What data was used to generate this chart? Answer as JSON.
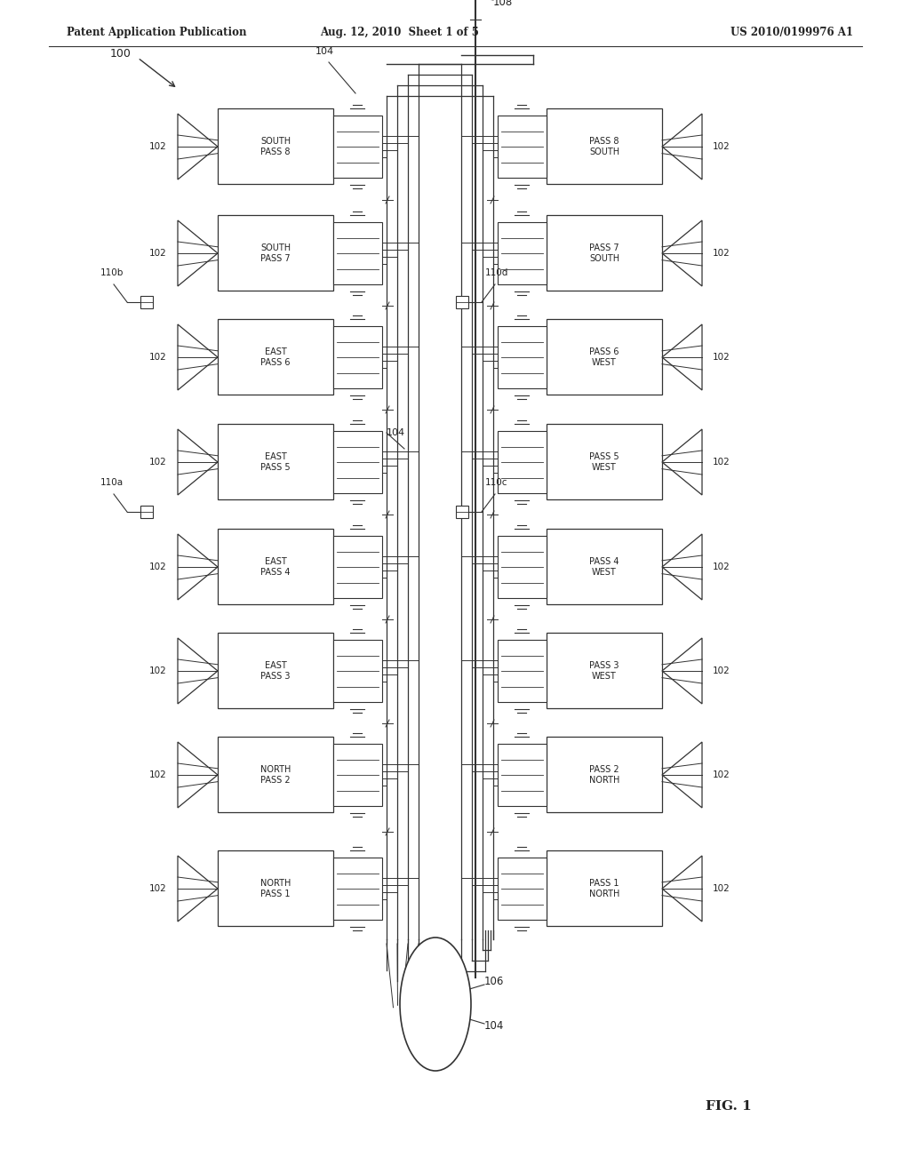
{
  "title_left": "Patent Application Publication",
  "title_center": "Aug. 12, 2010  Sheet 1 of 5",
  "title_right": "US 2010/0199976 A1",
  "fig_label": "FIG. 1",
  "background": "#ffffff",
  "line_color": "#333333",
  "label_color": "#222222",
  "passes_left": [
    {
      "name": "SOUTH\nPASS 8",
      "row": 8
    },
    {
      "name": "SOUTH\nPASS 7",
      "row": 7
    },
    {
      "name": "EAST\nPASS 6",
      "row": 6
    },
    {
      "name": "EAST\nPASS 5",
      "row": 5
    },
    {
      "name": "EAST\nPASS 4",
      "row": 4
    },
    {
      "name": "EAST\nPASS 3",
      "row": 3
    },
    {
      "name": "NORTH\nPASS 2",
      "row": 2
    },
    {
      "name": "NORTH\nPASS 1",
      "row": 1
    }
  ],
  "passes_right": [
    {
      "name": "PASS 8\nSOUTH",
      "row": 8
    },
    {
      "name": "PASS 7\nSOUTH",
      "row": 7
    },
    {
      "name": "PASS 6\nWEST",
      "row": 6
    },
    {
      "name": "PASS 5\nWEST",
      "row": 5
    },
    {
      "name": "PASS 4\nWEST",
      "row": 4
    },
    {
      "name": "PASS 3\nWEST",
      "row": 3
    },
    {
      "name": "PASS 2\nNORTH",
      "row": 2
    },
    {
      "name": "PASS 1\nNORTH",
      "row": 1
    }
  ]
}
